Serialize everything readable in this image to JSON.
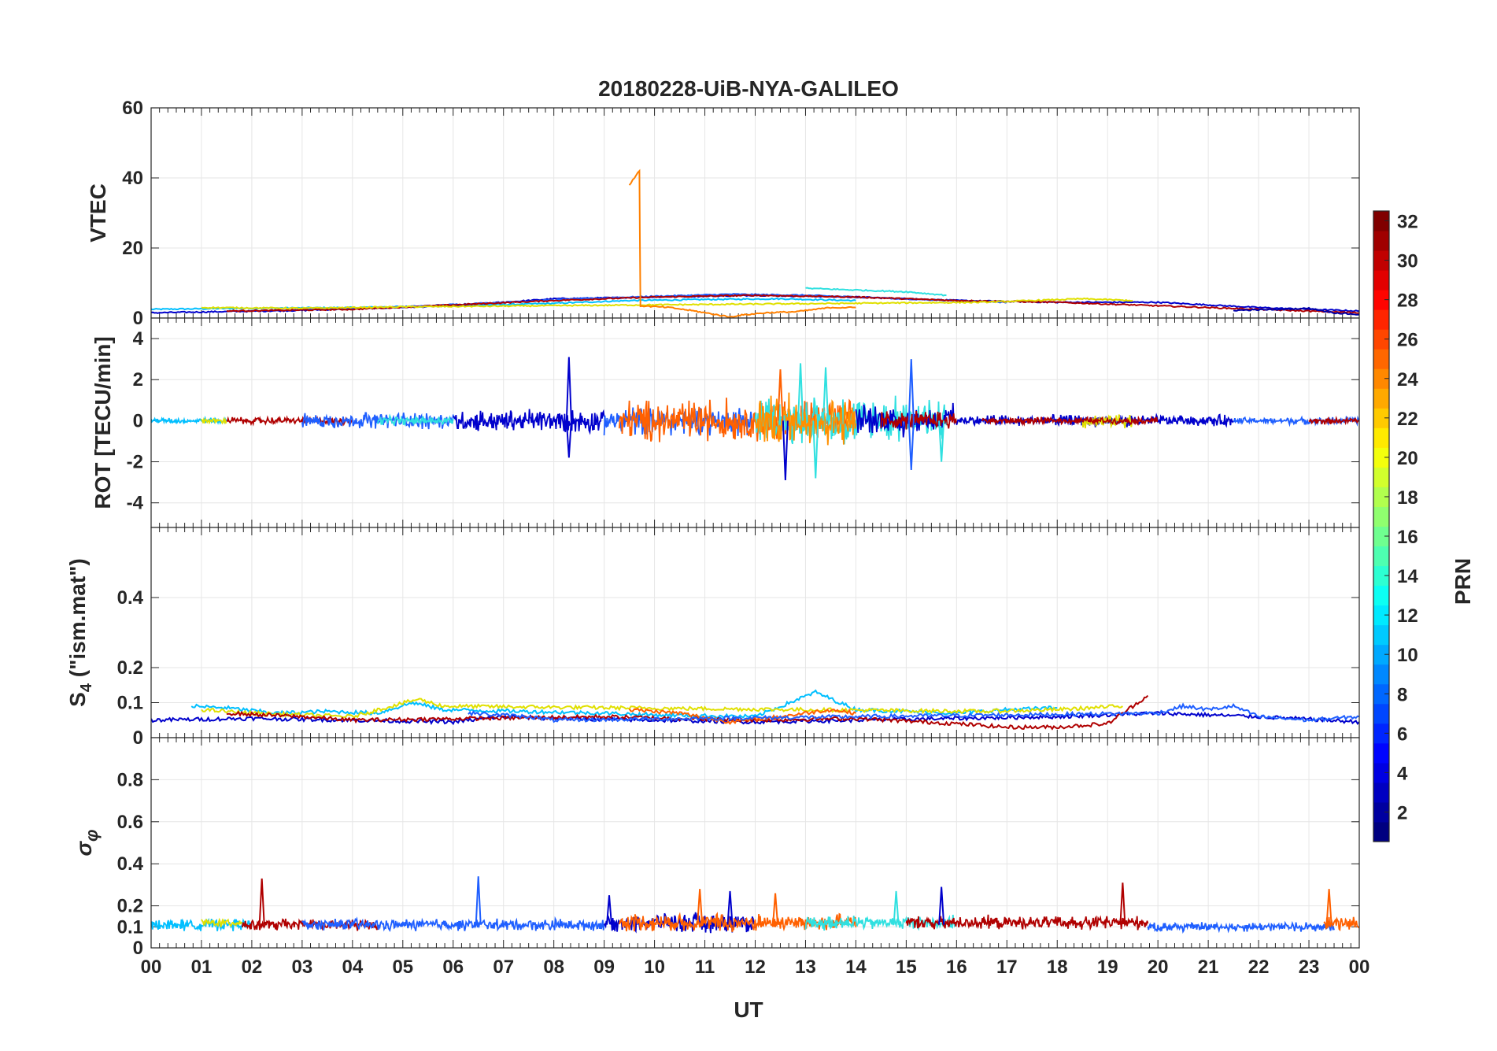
{
  "figure": {
    "title": "20180228-UiB-NYA-GALILEO",
    "xlabel": "UT"
  },
  "colorbar": {
    "label": "PRN",
    "range": [
      1,
      32
    ],
    "ticks": [
      "2",
      "4",
      "6",
      "8",
      "10",
      "12",
      "14",
      "16",
      "18",
      "20",
      "22",
      "24",
      "26",
      "28",
      "30",
      "32"
    ],
    "colormap": "jet"
  },
  "chart_data": [
    {
      "type": "line",
      "title": "20180228-UiB-NYA-GALILEO",
      "ylabel": "VTEC",
      "xlim": [
        0,
        24
      ],
      "ylim": [
        0,
        60
      ],
      "x_ticks": [
        "00",
        "01",
        "02",
        "03",
        "04",
        "05",
        "06",
        "07",
        "08",
        "09",
        "10",
        "11",
        "12",
        "13",
        "14",
        "15",
        "16",
        "17",
        "18",
        "19",
        "20",
        "21",
        "22",
        "23",
        "00"
      ],
      "y_ticks": [
        "0",
        "20",
        "40",
        "60"
      ],
      "grid": true,
      "series": [
        {
          "color": "#00BFFF",
          "x": [
            0,
            2,
            4,
            6,
            8,
            9.5,
            11,
            12.5,
            14
          ],
          "y": [
            2.5,
            2.8,
            3.0,
            3.5,
            4.2,
            5.0,
            5.3,
            5.5,
            5.0
          ]
        },
        {
          "color": "#0000CC",
          "x": [
            0,
            3,
            6,
            8,
            10,
            12,
            14,
            16,
            18,
            20,
            22,
            24
          ],
          "y": [
            1.5,
            2.2,
            3.5,
            5.5,
            6.0,
            6.5,
            6.0,
            5.0,
            4.5,
            4.5,
            3.0,
            2.0
          ]
        },
        {
          "color": "#1F5FFF",
          "x": [
            3,
            5,
            7,
            8.5,
            10,
            11.5,
            13,
            15,
            17
          ],
          "y": [
            2.5,
            3.2,
            4.5,
            5.5,
            6.2,
            6.8,
            6.5,
            5.5,
            4.5
          ]
        },
        {
          "color": "#B00000",
          "x": [
            1.5,
            4,
            8,
            10,
            12,
            14,
            16,
            18,
            20,
            22,
            24
          ],
          "y": [
            2.0,
            2.5,
            5.0,
            6.0,
            6.5,
            6.0,
            5.0,
            4.5,
            3.5,
            2.5,
            1.5
          ]
        },
        {
          "color": "#E0E000",
          "x": [
            1,
            3,
            5,
            16.5,
            18.5,
            19.5
          ],
          "y": [
            3.0,
            2.8,
            3.2,
            4.5,
            5.5,
            5.0
          ]
        },
        {
          "color": "#30E0E0",
          "x": [
            13,
            14,
            15,
            15.8
          ],
          "y": [
            8.5,
            8.0,
            7.5,
            6.5
          ]
        },
        {
          "color": "#FF8000",
          "x": [
            9.5,
            9.7,
            9.72,
            10.3,
            10.8,
            11.3,
            11.5,
            11.7,
            12.2,
            12.8,
            13.5,
            14.0
          ],
          "y": [
            38.0,
            42.0,
            3.5,
            3.0,
            2.0,
            0.8,
            0.3,
            0.8,
            1.5,
            1.8,
            3.0,
            3.0
          ]
        },
        {
          "color": "#0000AA",
          "x": [
            21.5,
            22.5,
            23,
            23.5,
            24
          ],
          "y": [
            2.2,
            2.5,
            2.8,
            1.5,
            1.0
          ]
        }
      ]
    },
    {
      "type": "line",
      "ylabel": "ROT [TECU/min]",
      "xlim": [
        0,
        24
      ],
      "ylim": [
        -5.2,
        5
      ],
      "y_ticks": [
        "-4",
        "-2",
        "0",
        "2",
        "4"
      ],
      "grid": true,
      "noise_bands": [
        {
          "color": "#00BFFF",
          "x_start": 0,
          "x_end": 1.5,
          "amplitude": 0.12
        },
        {
          "color": "#E0E000",
          "x_start": 1.0,
          "x_end": 1.5,
          "amplitude": 0.12
        },
        {
          "color": "#B00000",
          "x_start": 1.5,
          "x_end": 4.0,
          "amplitude": 0.15
        },
        {
          "color": "#1F5FFF",
          "x_start": 3.0,
          "x_end": 6.0,
          "amplitude": 0.35
        },
        {
          "color": "#30E0E0",
          "x_start": 4.5,
          "x_end": 6.0,
          "amplitude": 0.2
        },
        {
          "color": "#0000CC",
          "x_start": 6.0,
          "x_end": 9.0,
          "amplitude": 0.5
        },
        {
          "color": "#1F5FFF",
          "x_start": 9.0,
          "x_end": 12.0,
          "amplitude": 0.6
        },
        {
          "color": "#FF6000",
          "x_start": 9.3,
          "x_end": 14.0,
          "amplitude": 0.9
        },
        {
          "color": "#30E0E0",
          "x_start": 12.0,
          "x_end": 15.8,
          "amplitude": 1.0
        },
        {
          "color": "#FF9000",
          "x_start": 12.0,
          "x_end": 14.0,
          "amplitude": 1.1
        },
        {
          "color": "#0000CC",
          "x_start": 14.0,
          "x_end": 16.0,
          "amplitude": 0.7
        },
        {
          "color": "#B00000",
          "x_start": 14.5,
          "x_end": 16.0,
          "amplitude": 0.4
        },
        {
          "color": "#0000CC",
          "x_start": 16.0,
          "x_end": 21.5,
          "amplitude": 0.25
        },
        {
          "color": "#E0E000",
          "x_start": 18.5,
          "x_end": 19.5,
          "amplitude": 0.3
        },
        {
          "color": "#B00000",
          "x_start": 16.5,
          "x_end": 20.0,
          "amplitude": 0.15
        },
        {
          "color": "#1F5FFF",
          "x_start": 21.5,
          "x_end": 24.0,
          "amplitude": 0.15
        },
        {
          "color": "#B00000",
          "x_start": 23.0,
          "x_end": 24.0,
          "amplitude": 0.15
        }
      ],
      "spikes": [
        {
          "x": 8.3,
          "y": 3.1,
          "color": "#0000CC"
        },
        {
          "x": 8.3,
          "y": -1.8,
          "color": "#0000CC"
        },
        {
          "x": 12.5,
          "y": 2.5,
          "color": "#FF6000"
        },
        {
          "x": 12.6,
          "y": -2.9,
          "color": "#0000CC"
        },
        {
          "x": 12.9,
          "y": 2.8,
          "color": "#30E0E0"
        },
        {
          "x": 13.2,
          "y": -2.8,
          "color": "#30E0E0"
        },
        {
          "x": 13.4,
          "y": 2.6,
          "color": "#30E0E0"
        },
        {
          "x": 15.1,
          "y": 3.0,
          "color": "#1F5FFF"
        },
        {
          "x": 15.1,
          "y": -2.4,
          "color": "#1F5FFF"
        },
        {
          "x": 15.7,
          "y": -2.0,
          "color": "#30E0E0"
        }
      ]
    },
    {
      "type": "line",
      "ylabel": "S4 (\"ism.mat\")",
      "xlim": [
        0,
        24
      ],
      "ylim": [
        0,
        0.6
      ],
      "y_ticks": [
        "0",
        "0.1",
        "0.2",
        "0.4"
      ],
      "grid": true,
      "series": [
        {
          "color": "#0000CC",
          "x": [
            0,
            2,
            4,
            6,
            7,
            8,
            10,
            12,
            14,
            16,
            18,
            20,
            22,
            24
          ],
          "y": [
            0.05,
            0.055,
            0.05,
            0.045,
            0.06,
            0.055,
            0.05,
            0.045,
            0.05,
            0.055,
            0.06,
            0.07,
            0.06,
            0.045
          ]
        },
        {
          "color": "#00BFFF",
          "x": [
            0.8,
            1.5,
            2.5,
            3.5,
            4.5,
            5.2,
            5.8,
            9,
            10,
            12,
            13.2,
            14,
            15,
            16,
            17,
            18
          ],
          "y": [
            0.09,
            0.085,
            0.07,
            0.075,
            0.07,
            0.1,
            0.08,
            0.07,
            0.065,
            0.06,
            0.13,
            0.08,
            0.075,
            0.07,
            0.08,
            0.085
          ]
        },
        {
          "color": "#E0E000",
          "x": [
            1.0,
            2.0,
            4.0,
            5.3,
            5.8,
            16.5,
            18.0,
            19.3
          ],
          "y": [
            0.08,
            0.07,
            0.06,
            0.11,
            0.09,
            0.075,
            0.08,
            0.09
          ]
        },
        {
          "color": "#B00000",
          "x": [
            1.5,
            3,
            4,
            9,
            12,
            14,
            16,
            17,
            18,
            19,
            19.8
          ],
          "y": [
            0.07,
            0.06,
            0.05,
            0.06,
            0.05,
            0.055,
            0.04,
            0.03,
            0.03,
            0.04,
            0.12
          ]
        },
        {
          "color": "#FF6000",
          "x": [
            9.5,
            10.5,
            11.5,
            12.5,
            13.5,
            14.0
          ],
          "y": [
            0.08,
            0.07,
            0.045,
            0.06,
            0.08,
            0.07
          ]
        },
        {
          "color": "#1F5FFF",
          "x": [
            6.3,
            7.5,
            8.0,
            20,
            20.5,
            21,
            21.5,
            22,
            23,
            24
          ],
          "y": [
            0.07,
            0.06,
            0.05,
            0.07,
            0.09,
            0.08,
            0.09,
            0.06,
            0.05,
            0.06
          ]
        }
      ]
    },
    {
      "type": "line",
      "ylabel": "σφ",
      "xlim": [
        0,
        24
      ],
      "ylim": [
        0,
        1
      ],
      "y_ticks": [
        "0",
        "0.1",
        "0.2",
        "0.4",
        "0.6",
        "0.8"
      ],
      "grid": true,
      "noise_bands": [
        {
          "color": "#00BFFF",
          "x_start": 0,
          "x_end": 2.0,
          "amplitude": 0.025,
          "base": 0.11
        },
        {
          "color": "#E0E000",
          "x_start": 1.0,
          "x_end": 1.8,
          "amplitude": 0.02,
          "base": 0.12
        },
        {
          "color": "#B00000",
          "x_start": 1.8,
          "x_end": 4.5,
          "amplitude": 0.025,
          "base": 0.11
        },
        {
          "color": "#1F5FFF",
          "x_start": 3.0,
          "x_end": 9.0,
          "amplitude": 0.025,
          "base": 0.11
        },
        {
          "color": "#0000CC",
          "x_start": 9.0,
          "x_end": 12.0,
          "amplitude": 0.04,
          "base": 0.12
        },
        {
          "color": "#FF6000",
          "x_start": 9.3,
          "x_end": 14.0,
          "amplitude": 0.04,
          "base": 0.12
        },
        {
          "color": "#30E0E0",
          "x_start": 13.0,
          "x_end": 16.0,
          "amplitude": 0.03,
          "base": 0.12
        },
        {
          "color": "#B00000",
          "x_start": 15.0,
          "x_end": 19.8,
          "amplitude": 0.03,
          "base": 0.12
        },
        {
          "color": "#1F5FFF",
          "x_start": 19.8,
          "x_end": 23.5,
          "amplitude": 0.02,
          "base": 0.1
        },
        {
          "color": "#FF6000",
          "x_start": 23.3,
          "x_end": 24.0,
          "amplitude": 0.03,
          "base": 0.12
        }
      ],
      "spikes": [
        {
          "x": 2.2,
          "y": 0.33,
          "color": "#B00000"
        },
        {
          "x": 6.5,
          "y": 0.34,
          "color": "#1F5FFF"
        },
        {
          "x": 9.1,
          "y": 0.25,
          "color": "#0000CC"
        },
        {
          "x": 10.9,
          "y": 0.28,
          "color": "#FF6000"
        },
        {
          "x": 11.5,
          "y": 0.27,
          "color": "#0000CC"
        },
        {
          "x": 12.4,
          "y": 0.26,
          "color": "#FF6000"
        },
        {
          "x": 14.8,
          "y": 0.27,
          "color": "#30E0E0"
        },
        {
          "x": 15.7,
          "y": 0.29,
          "color": "#0000CC"
        },
        {
          "x": 19.3,
          "y": 0.31,
          "color": "#B00000"
        },
        {
          "x": 23.4,
          "y": 0.28,
          "color": "#FF6000"
        }
      ]
    }
  ]
}
